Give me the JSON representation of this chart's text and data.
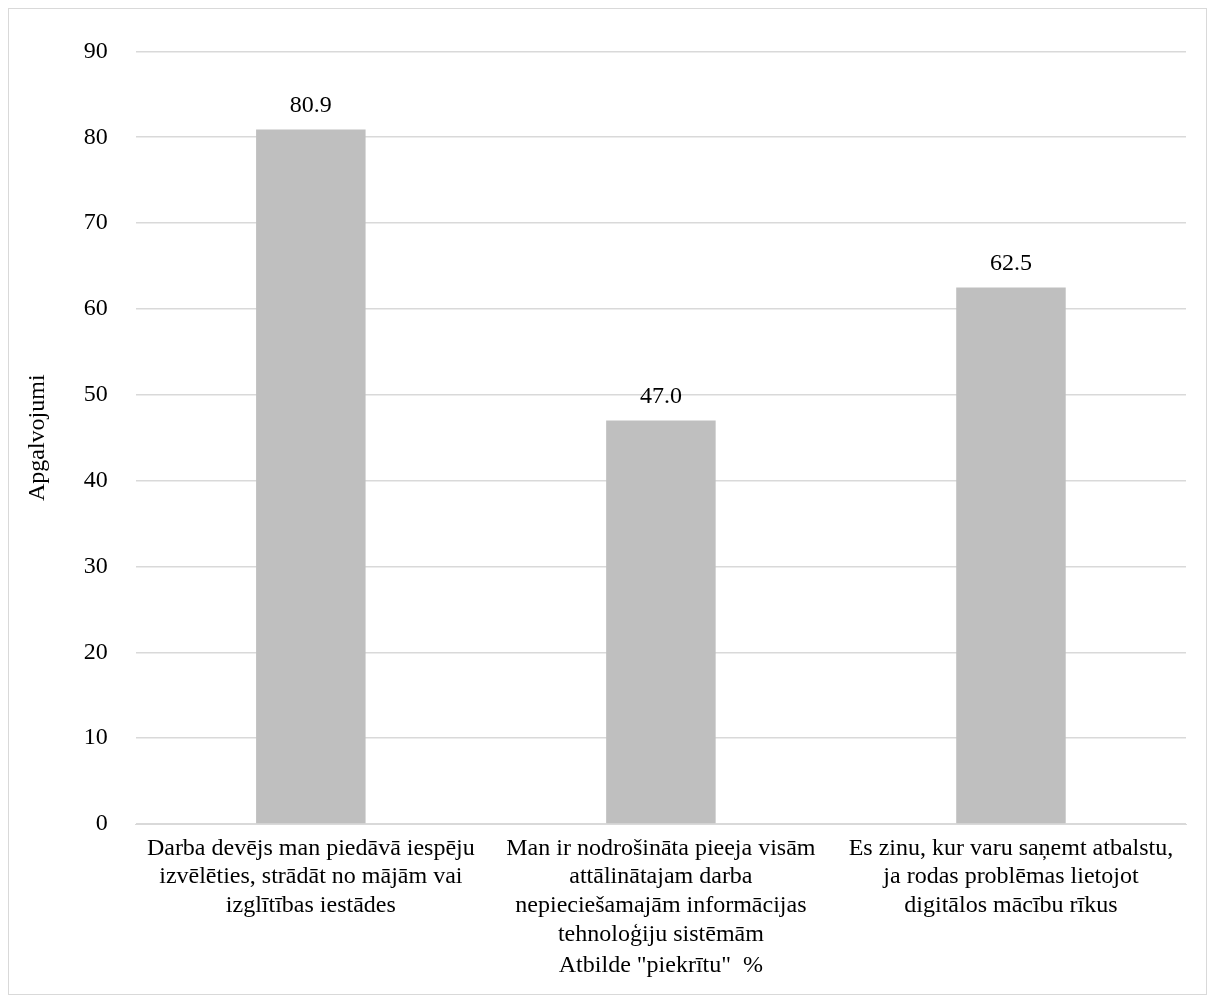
{
  "chart_data": {
    "type": "bar",
    "xlabel": "Atbilde \"piekrītu\"  %",
    "ylabel": "Apgalvojumi",
    "categories": [
      "Darba devējs man piedāvā iespēju izvēlēties, strādāt no mājām vai izglītības iestādes",
      "Man ir nodrošināta pieeja visām attālinātajam darba nepieciešamajām informācijas tehnoloģiju sistēmām",
      "Es zinu, kur varu saņemt atbalstu, ja rodas problēmas lietojot digitālos mācību rīkus"
    ],
    "values": [
      80.9,
      47.0,
      62.5
    ],
    "color": "#bfbfbf",
    "ylim": [
      0,
      90
    ],
    "yticks": [
      0,
      10,
      20,
      30,
      40,
      50,
      60,
      70,
      80,
      90
    ],
    "grid": "y",
    "legend": false,
    "value_labels": [
      "80.9",
      "47.0",
      "62.5"
    ]
  }
}
